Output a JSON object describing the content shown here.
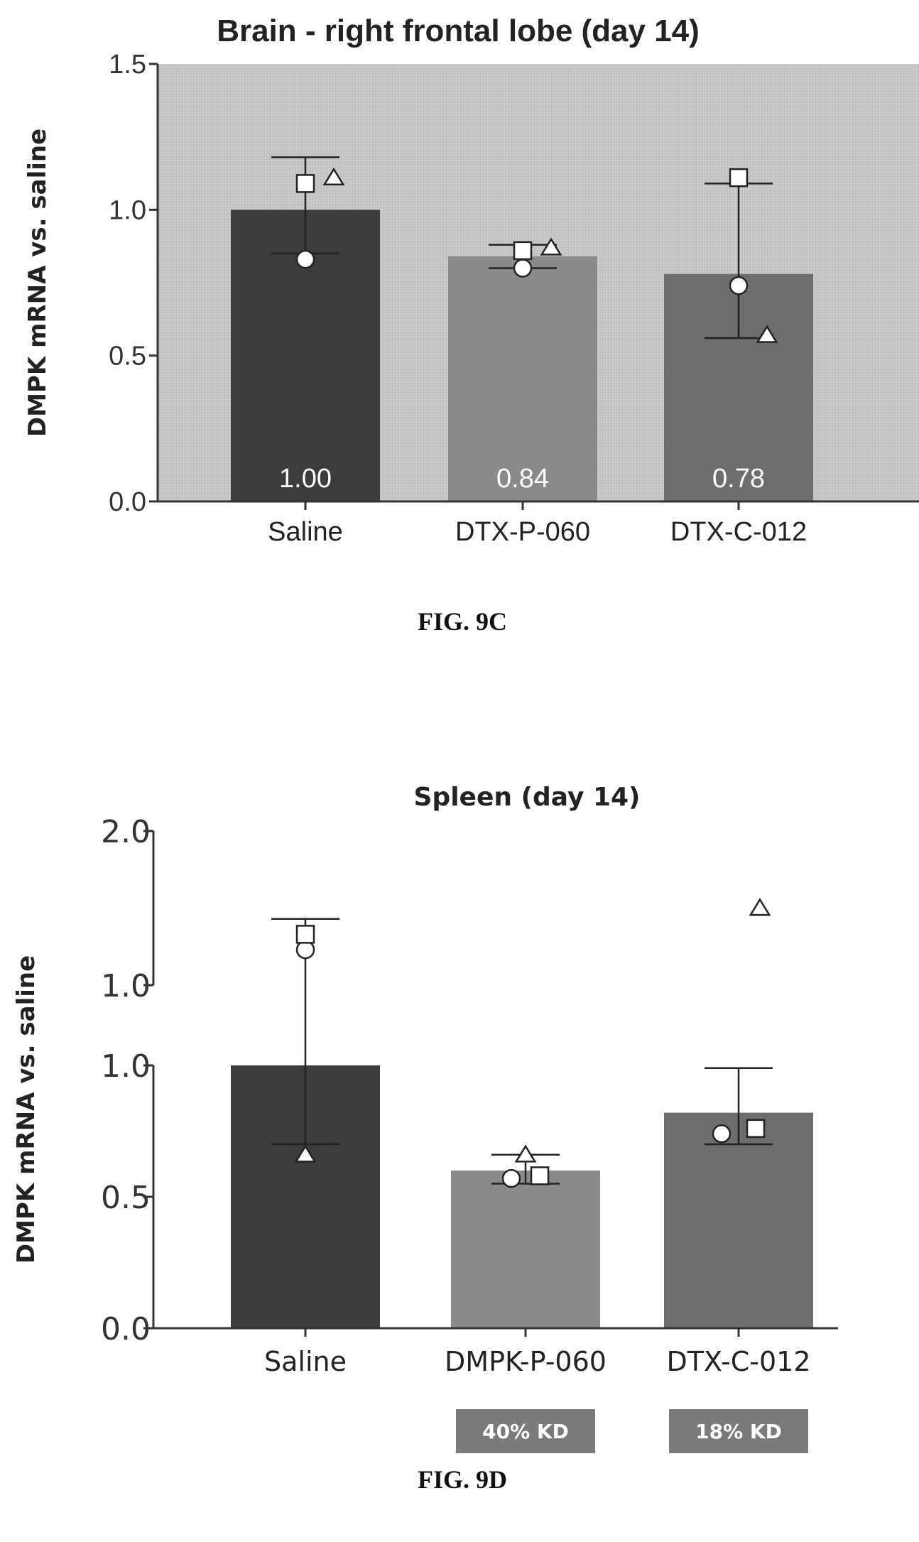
{
  "figures": [
    {
      "caption": "FIG. 9C"
    },
    {
      "caption": "FIG. 9D"
    }
  ],
  "chart_data": [
    {
      "type": "bar",
      "title": "Brain - right frontal lobe (day 14)",
      "ylabel": "DMPK mRNA vs. saline",
      "xlabel": "",
      "categories": [
        "Saline",
        "DTX-P-060",
        "DTX-C-012"
      ],
      "values": [
        1.0,
        0.84,
        0.78
      ],
      "value_labels": [
        "1.00",
        "0.84",
        "0.78"
      ],
      "error_bars": [
        {
          "low": 0.85,
          "high": 1.18
        },
        {
          "low": 0.8,
          "high": 0.88
        },
        {
          "low": 0.56,
          "high": 1.09
        }
      ],
      "points": [
        [
          {
            "shape": "circle",
            "y": 0.83
          },
          {
            "shape": "square",
            "y": 1.09
          },
          {
            "shape": "triangle",
            "y": 1.11
          }
        ],
        [
          {
            "shape": "circle",
            "y": 0.8
          },
          {
            "shape": "square",
            "y": 0.86
          },
          {
            "shape": "triangle",
            "y": 0.87
          }
        ],
        [
          {
            "shape": "circle",
            "y": 0.74
          },
          {
            "shape": "square",
            "y": 1.11
          },
          {
            "shape": "triangle",
            "y": 0.57
          }
        ]
      ],
      "ylim": [
        0,
        1.5
      ],
      "yticks": [
        "0.0",
        "0.5",
        "1.0",
        "1.5"
      ],
      "grid": false,
      "background": "#c4c4c4",
      "bar_colors": [
        "#3c3c3c",
        "#8a8a8a",
        "#6d6d6d"
      ]
    },
    {
      "type": "bar",
      "title": "Spleen (day 14)",
      "ylabel": "DMPK mRNA vs. saline",
      "xlabel": "",
      "axis_break": true,
      "categories": [
        "Saline",
        "DMPK-P-060",
        "DTX-C-012"
      ],
      "values": [
        1.0,
        0.6,
        0.82
      ],
      "category_badges": [
        "",
        "40% KD",
        "18% KD"
      ],
      "error_bars": [
        {
          "low": 0.7,
          "high": 1.43
        },
        {
          "low": 0.55,
          "high": 0.66
        },
        {
          "low": 0.7,
          "high": 0.99
        }
      ],
      "points": [
        [
          {
            "shape": "circle",
            "y": 1.23
          },
          {
            "shape": "square",
            "y": 1.33
          },
          {
            "shape": "triangle",
            "y": 0.66
          }
        ],
        [
          {
            "shape": "circle",
            "y": 0.57
          },
          {
            "shape": "square",
            "y": 0.58
          },
          {
            "shape": "triangle",
            "y": 0.66
          }
        ],
        [
          {
            "shape": "circle",
            "y": 0.74
          },
          {
            "shape": "square",
            "y": 0.76
          },
          {
            "shape": "triangle",
            "y": 1.5
          }
        ]
      ],
      "ylim": [
        0,
        2.0
      ],
      "yticks": [
        "0.0",
        "0.5",
        "1.0",
        "1.0",
        "2.0"
      ],
      "grid": false,
      "background": "#ffffff",
      "bar_colors": [
        "#3c3c3c",
        "#8a8a8a",
        "#6d6d6d"
      ]
    }
  ]
}
